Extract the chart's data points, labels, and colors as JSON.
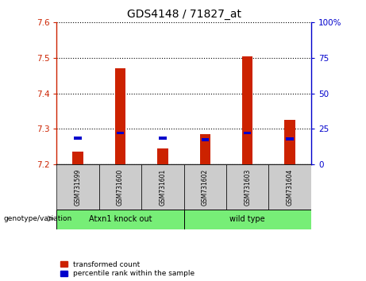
{
  "title": "GDS4148 / 71827_at",
  "samples": [
    "GSM731599",
    "GSM731600",
    "GSM731601",
    "GSM731602",
    "GSM731603",
    "GSM731604"
  ],
  "red_values": [
    7.235,
    7.47,
    7.245,
    7.285,
    7.505,
    7.325
  ],
  "blue_values": [
    7.27,
    7.285,
    7.27,
    7.265,
    7.285,
    7.268
  ],
  "blue_heights": [
    0.008,
    0.008,
    0.008,
    0.008,
    0.008,
    0.008
  ],
  "y_min": 7.2,
  "y_max": 7.6,
  "y_ticks": [
    7.2,
    7.3,
    7.4,
    7.5,
    7.6
  ],
  "y2_ticks": [
    0,
    25,
    50,
    75,
    100
  ],
  "bar_bottom": 7.2,
  "bar_width": 0.25,
  "red_color": "#cc2200",
  "blue_color": "#0000cc",
  "left_axis_color": "#cc2200",
  "right_axis_color": "#0000cc",
  "gray_bg": "#cccccc",
  "green_bg": "#77ee77",
  "legend_red_label": "transformed count",
  "legend_blue_label": "percentile rank within the sample",
  "group1_label": "Atxn1 knock out",
  "group2_label": "wild type",
  "genotype_label": "genotype/variation"
}
